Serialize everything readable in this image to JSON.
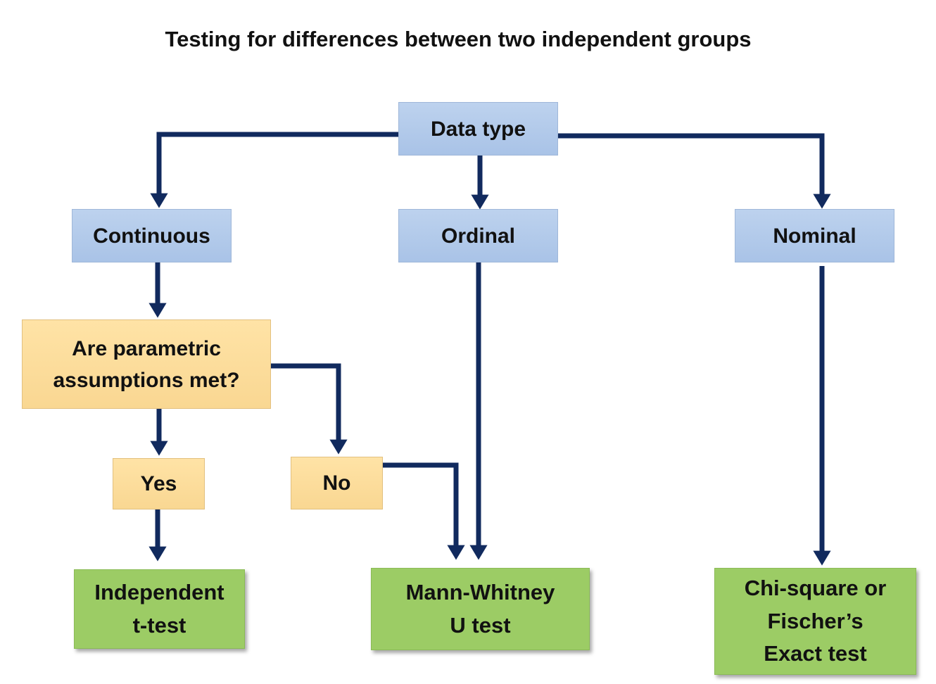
{
  "title": "Testing for differences between two independent groups",
  "nodes": {
    "data_type": "Data type",
    "continuous": "Continuous",
    "ordinal": "Ordinal",
    "nominal": "Nominal",
    "parametric_question": "Are parametric assumptions met?",
    "yes": "Yes",
    "no": "No",
    "t_test": "Independent t-test",
    "mann_whitney": "Mann-Whitney U test",
    "chi_square": "Chi-square or Fischer’s Exact test"
  },
  "colors": {
    "connector": "#112a5e",
    "level_box": "#abc4e7",
    "decision_box": "#fbd995",
    "result_box": "#9ccc65"
  }
}
